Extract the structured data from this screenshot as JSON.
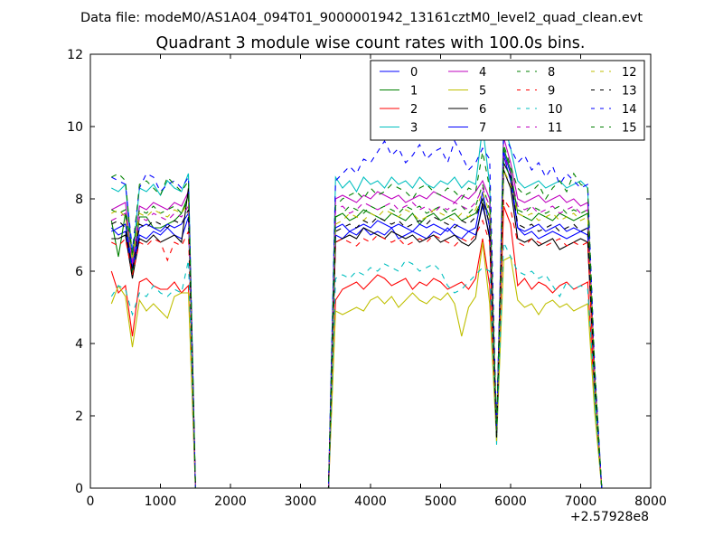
{
  "header": {
    "file_line": "Data file: modeM0/AS1A04_094T01_9000001942_13161cztM0_level2_quad_clean.evt"
  },
  "chart_data": {
    "type": "line",
    "title": "Quadrant 3 module wise count rates with 100.0s bins.",
    "xlabel": "",
    "ylabel": "",
    "x_offset_label": "+2.57928e8",
    "xlim": [
      0,
      8000
    ],
    "ylim": [
      0,
      12
    ],
    "x_ticks": [
      0,
      1000,
      2000,
      3000,
      4000,
      5000,
      6000,
      7000,
      8000
    ],
    "y_ticks": [
      0,
      2,
      4,
      6,
      8,
      10,
      12
    ],
    "grid": false,
    "legend_position": "top-right",
    "x": [
      300,
      400,
      500,
      600,
      700,
      800,
      900,
      1000,
      1100,
      1200,
      1300,
      1400,
      1500,
      3400,
      3500,
      3600,
      3700,
      3800,
      3900,
      4000,
      4100,
      4200,
      4300,
      4400,
      4500,
      4600,
      4700,
      4800,
      4900,
      5000,
      5100,
      5200,
      5300,
      5400,
      5500,
      5600,
      5700,
      5800,
      5900,
      6000,
      6100,
      6200,
      6300,
      6400,
      6500,
      6600,
      6700,
      6800,
      6900,
      7000,
      7100,
      7200,
      7300
    ],
    "series": [
      {
        "name": "0",
        "color": "#0000ff",
        "dashed": false,
        "values": [
          7.2,
          7.0,
          7.1,
          6.0,
          7.0,
          6.9,
          7.1,
          7.0,
          7.2,
          7.0,
          6.9,
          7.5,
          0,
          0,
          7.0,
          6.9,
          7.1,
          7.0,
          7.2,
          7.0,
          7.1,
          7.0,
          7.2,
          6.9,
          7.0,
          7.1,
          7.0,
          6.9,
          7.1,
          7.0,
          7.2,
          7.0,
          6.9,
          7.1,
          7.0,
          7.8,
          7.0,
          1.5,
          9.2,
          8.5,
          7.2,
          7.0,
          7.1,
          6.9,
          7.0,
          7.1,
          7.0,
          6.9,
          7.0,
          7.1,
          7.0,
          3.0,
          0
        ]
      },
      {
        "name": "1",
        "color": "#008000",
        "dashed": false,
        "values": [
          7.4,
          6.4,
          7.6,
          5.9,
          7.5,
          7.5,
          7.2,
          7.2,
          7.3,
          7.4,
          7.6,
          8.1,
          0,
          0,
          7.5,
          7.6,
          7.4,
          7.5,
          7.7,
          7.6,
          7.5,
          7.4,
          7.6,
          7.5,
          7.4,
          7.6,
          7.3,
          7.5,
          7.6,
          7.4,
          7.5,
          7.6,
          7.4,
          7.5,
          7.6,
          8.0,
          7.5,
          1.6,
          9.4,
          8.8,
          7.6,
          7.5,
          7.4,
          7.6,
          7.5,
          7.4,
          7.6,
          7.5,
          7.4,
          7.5,
          7.6,
          3.2,
          0
        ]
      },
      {
        "name": "2",
        "color": "#ff0000",
        "dashed": false,
        "values": [
          6.0,
          5.4,
          5.6,
          4.2,
          5.7,
          5.8,
          5.6,
          5.5,
          5.5,
          5.7,
          5.4,
          5.6,
          0,
          0,
          5.2,
          5.5,
          5.6,
          5.7,
          5.5,
          5.7,
          5.9,
          5.8,
          5.6,
          5.7,
          5.8,
          5.5,
          5.7,
          5.6,
          5.8,
          5.7,
          5.5,
          5.6,
          5.7,
          5.5,
          5.8,
          6.9,
          5.6,
          1.4,
          7.8,
          7.3,
          5.6,
          5.8,
          5.5,
          5.7,
          5.6,
          5.4,
          5.6,
          5.7,
          5.5,
          5.6,
          5.7,
          2.5,
          0
        ]
      },
      {
        "name": "3",
        "color": "#00bfbf",
        "dashed": false,
        "values": [
          8.3,
          8.2,
          8.4,
          6.3,
          8.3,
          8.2,
          8.4,
          8.1,
          8.5,
          8.3,
          8.2,
          8.7,
          0,
          0,
          8.6,
          8.3,
          8.5,
          8.2,
          8.6,
          8.4,
          8.5,
          8.3,
          8.6,
          8.4,
          8.5,
          8.3,
          8.6,
          8.4,
          8.3,
          8.5,
          8.4,
          8.6,
          8.3,
          8.5,
          8.4,
          10.0,
          8.4,
          1.2,
          10.1,
          9.4,
          8.5,
          8.3,
          8.4,
          8.5,
          8.3,
          8.4,
          8.5,
          8.3,
          8.4,
          8.5,
          8.3,
          2.4,
          0
        ]
      },
      {
        "name": "4",
        "color": "#bf00bf",
        "dashed": false,
        "values": [
          7.7,
          7.8,
          7.9,
          6.2,
          7.8,
          7.7,
          7.9,
          7.8,
          7.7,
          7.9,
          7.8,
          8.2,
          0,
          0,
          8.0,
          8.1,
          8.0,
          7.9,
          8.1,
          8.0,
          8.2,
          8.1,
          8.0,
          8.1,
          7.9,
          8.0,
          8.1,
          8.0,
          8.2,
          8.1,
          8.0,
          7.9,
          8.1,
          8.0,
          8.2,
          8.5,
          8.0,
          1.5,
          9.7,
          9.0,
          8.0,
          7.9,
          8.0,
          8.1,
          7.9,
          8.0,
          8.1,
          7.9,
          8.0,
          7.8,
          7.9,
          3.0,
          0
        ]
      },
      {
        "name": "5",
        "color": "#bfbf00",
        "dashed": false,
        "values": [
          5.1,
          5.6,
          5.3,
          3.9,
          5.2,
          4.9,
          5.1,
          4.9,
          4.7,
          5.3,
          5.4,
          5.4,
          0,
          0,
          4.9,
          4.8,
          4.9,
          5.0,
          4.9,
          5.2,
          5.3,
          5.1,
          5.3,
          5.0,
          5.2,
          5.4,
          5.2,
          5.1,
          5.3,
          5.2,
          5.4,
          5.1,
          4.2,
          5.0,
          5.3,
          6.8,
          5.1,
          1.3,
          6.3,
          6.4,
          5.2,
          5.0,
          5.1,
          4.8,
          5.1,
          5.2,
          5.0,
          5.1,
          4.9,
          5.0,
          5.1,
          2.1,
          0
        ]
      },
      {
        "name": "6",
        "color": "#000000",
        "dashed": false,
        "values": [
          6.9,
          6.9,
          7.0,
          5.8,
          6.9,
          6.8,
          7.0,
          6.8,
          6.9,
          7.0,
          6.8,
          8.3,
          0,
          0,
          6.8,
          6.9,
          7.0,
          6.9,
          7.2,
          7.1,
          7.0,
          6.9,
          7.1,
          7.0,
          6.9,
          7.0,
          6.8,
          6.9,
          7.0,
          6.8,
          6.9,
          7.0,
          6.8,
          6.7,
          6.9,
          7.9,
          6.9,
          1.4,
          8.8,
          8.3,
          6.9,
          6.8,
          6.9,
          6.7,
          6.8,
          6.9,
          6.6,
          6.7,
          6.8,
          6.9,
          6.8,
          2.8,
          0
        ]
      },
      {
        "name": "7",
        "color": "#0000ff",
        "dashed": false,
        "values": [
          7.1,
          7.2,
          7.3,
          6.1,
          7.2,
          7.3,
          7.2,
          7.1,
          7.3,
          7.2,
          7.3,
          7.6,
          0,
          0,
          7.2,
          7.3,
          7.1,
          7.2,
          7.3,
          7.2,
          7.4,
          7.3,
          7.2,
          7.3,
          7.2,
          7.1,
          7.3,
          7.2,
          7.3,
          7.2,
          7.1,
          7.3,
          7.2,
          7.1,
          7.2,
          8.2,
          7.2,
          1.5,
          9.3,
          8.7,
          7.2,
          7.1,
          7.2,
          7.3,
          7.1,
          7.2,
          7.3,
          7.1,
          7.2,
          7.1,
          7.2,
          2.9,
          0
        ]
      },
      {
        "name": "8",
        "color": "#008000",
        "dashed": true,
        "values": [
          7.7,
          7.6,
          7.7,
          6.5,
          7.7,
          7.6,
          7.8,
          7.6,
          7.7,
          7.8,
          7.6,
          8.0,
          0,
          0,
          7.5,
          7.6,
          7.8,
          7.7,
          7.6,
          7.8,
          7.7,
          7.8,
          7.7,
          7.6,
          7.8,
          7.7,
          7.8,
          7.6,
          7.7,
          7.8,
          7.6,
          7.7,
          7.8,
          7.6,
          7.8,
          8.4,
          7.7,
          1.6,
          9.0,
          8.6,
          7.7,
          7.6,
          7.8,
          7.7,
          7.6,
          7.7,
          7.8,
          7.6,
          7.7,
          7.6,
          7.7,
          3.1,
          0
        ]
      },
      {
        "name": "9",
        "color": "#ff0000",
        "dashed": true,
        "values": [
          6.8,
          6.7,
          6.9,
          5.9,
          6.8,
          6.7,
          6.9,
          6.8,
          6.3,
          6.8,
          6.7,
          7.1,
          0,
          0,
          6.8,
          6.9,
          6.8,
          6.7,
          6.9,
          6.8,
          7.0,
          6.9,
          6.8,
          6.9,
          6.7,
          6.8,
          6.9,
          6.8,
          7.0,
          6.9,
          6.8,
          6.7,
          6.9,
          6.8,
          7.0,
          7.4,
          6.8,
          1.5,
          8.0,
          7.7,
          6.8,
          6.7,
          6.9,
          6.8,
          6.7,
          6.8,
          6.9,
          6.7,
          6.8,
          6.7,
          6.8,
          2.8,
          0
        ]
      },
      {
        "name": "10",
        "color": "#00bfbf",
        "dashed": true,
        "values": [
          5.3,
          5.6,
          5.5,
          4.8,
          5.4,
          5.3,
          5.6,
          5.4,
          5.3,
          5.5,
          5.4,
          6.3,
          0,
          0,
          5.8,
          5.9,
          5.8,
          6.0,
          5.9,
          6.1,
          6.0,
          6.2,
          6.1,
          6.0,
          6.3,
          6.2,
          6.0,
          6.1,
          6.2,
          6.0,
          5.6,
          5.4,
          5.5,
          5.7,
          5.9,
          6.1,
          6.0,
          1.4,
          6.8,
          6.4,
          6.0,
          5.9,
          6.0,
          5.8,
          5.9,
          5.6,
          5.3,
          5.7,
          5.5,
          5.6,
          5.5,
          2.6,
          0
        ]
      },
      {
        "name": "11",
        "color": "#bf00bf",
        "dashed": true,
        "values": [
          7.4,
          7.5,
          7.6,
          6.2,
          7.5,
          7.4,
          7.6,
          7.5,
          7.4,
          7.6,
          7.5,
          7.8,
          0,
          0,
          7.7,
          7.8,
          7.6,
          7.7,
          7.9,
          7.8,
          7.7,
          7.8,
          7.9,
          7.7,
          7.8,
          7.9,
          7.7,
          7.8,
          7.6,
          7.8,
          7.7,
          7.9,
          7.8,
          7.7,
          7.9,
          8.3,
          7.8,
          1.5,
          9.2,
          8.7,
          7.8,
          7.7,
          7.8,
          7.6,
          7.7,
          7.8,
          7.6,
          7.7,
          7.8,
          7.6,
          7.7,
          3.0,
          0
        ]
      },
      {
        "name": "12",
        "color": "#bfbf00",
        "dashed": true,
        "values": [
          7.6,
          7.7,
          7.5,
          6.3,
          7.6,
          7.5,
          7.7,
          7.6,
          7.5,
          7.7,
          7.6,
          7.9,
          0,
          0,
          7.3,
          7.4,
          7.6,
          7.5,
          7.4,
          7.6,
          7.5,
          7.7,
          7.6,
          7.5,
          7.7,
          7.6,
          7.4,
          7.5,
          7.7,
          7.6,
          7.5,
          7.4,
          7.6,
          7.5,
          7.7,
          8.2,
          7.6,
          1.5,
          8.8,
          8.4,
          7.6,
          7.5,
          7.6,
          7.4,
          7.5,
          7.6,
          7.4,
          7.5,
          7.6,
          7.4,
          7.5,
          3.0,
          0
        ]
      },
      {
        "name": "13",
        "color": "#000000",
        "dashed": true,
        "values": [
          7.3,
          7.4,
          7.2,
          6.0,
          7.3,
          7.2,
          7.4,
          7.3,
          7.2,
          7.4,
          7.3,
          7.7,
          0,
          0,
          7.1,
          7.2,
          7.3,
          7.2,
          7.4,
          7.3,
          7.5,
          7.4,
          7.3,
          7.4,
          7.2,
          7.3,
          7.4,
          7.3,
          7.5,
          7.4,
          7.3,
          7.2,
          7.4,
          7.3,
          7.5,
          8.0,
          7.3,
          1.4,
          9.0,
          8.6,
          7.3,
          7.2,
          7.3,
          7.1,
          7.2,
          7.3,
          7.1,
          7.2,
          7.3,
          7.1,
          7.2,
          2.9,
          0
        ]
      },
      {
        "name": "14",
        "color": "#0000ff",
        "dashed": true,
        "values": [
          8.6,
          8.5,
          8.4,
          6.6,
          8.3,
          8.7,
          8.6,
          8.2,
          8.4,
          8.5,
          8.3,
          8.6,
          0,
          0,
          8.5,
          8.7,
          8.9,
          8.7,
          9.1,
          9.0,
          9.3,
          9.6,
          9.2,
          9.4,
          9.0,
          9.2,
          9.5,
          9.1,
          9.3,
          9.4,
          9.0,
          9.6,
          9.2,
          8.8,
          9.0,
          9.4,
          9.1,
          1.6,
          9.8,
          9.4,
          9.0,
          9.2,
          8.8,
          9.0,
          8.6,
          8.9,
          8.4,
          8.7,
          8.5,
          8.3,
          8.4,
          3.4,
          0
        ]
      },
      {
        "name": "15",
        "color": "#008000",
        "dashed": true,
        "values": [
          8.6,
          8.7,
          8.5,
          6.4,
          8.4,
          8.5,
          8.3,
          8.1,
          8.6,
          8.4,
          8.2,
          8.5,
          0,
          0,
          7.8,
          8.0,
          8.1,
          8.2,
          8.0,
          8.3,
          8.1,
          8.2,
          8.4,
          8.3,
          8.2,
          8.0,
          8.3,
          8.4,
          8.2,
          8.1,
          8.3,
          8.2,
          8.0,
          8.3,
          8.2,
          9.3,
          8.3,
          1.6,
          9.5,
          8.9,
          8.3,
          8.1,
          8.2,
          8.4,
          8.0,
          8.3,
          8.5,
          8.2,
          8.7,
          8.4,
          8.3,
          3.3,
          0
        ]
      }
    ]
  }
}
